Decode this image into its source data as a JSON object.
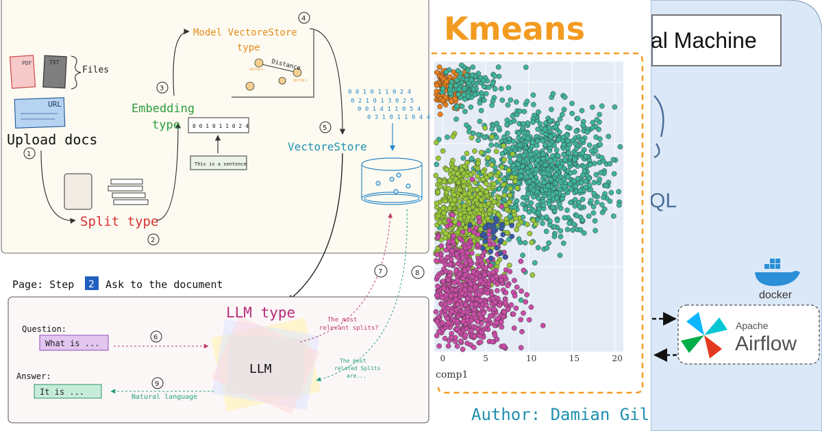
{
  "right_panel": {
    "vm_label": "al Machine",
    "sql_fragment": "QL",
    "docker_label": "docker",
    "airflow_small": "Apache",
    "airflow_big": "Airflow"
  },
  "kmeans": {
    "title": "Kmeans",
    "author": "Author: Damian Gil",
    "xlabel": "comp1"
  },
  "pipeline": {
    "files_label": "Files",
    "pdf_label": "PDF",
    "txt_label": "TXT",
    "url_label": "URL",
    "upload_label": "Upload docs",
    "split_label": "Split type",
    "embedding_label_1": "Embedding",
    "embedding_label_2": "type",
    "vector_code": "0 0 1 0 1 1 0 2 4",
    "sentence": "This is a sentence",
    "model_label_1": "Model VectoreStore",
    "model_label_2": "type",
    "distance_label": "Distance",
    "vector2_label": "VECTOR 2",
    "vector1_label": "VECTOR 1",
    "vectorstore_label": "VectoreStore",
    "codes": [
      "0 0 1 0 1 1 0 2 4",
      "0 2 1 0 1 3 0 2 5",
      "0 0 1 4 1 1 0 5 4",
      "0 3 1 0 1 1 0 4 4"
    ],
    "steps": [
      "1",
      "2",
      "3",
      "4",
      "5",
      "6",
      "7",
      "8",
      "9"
    ]
  },
  "ask": {
    "page_title_pre": "Page: Step",
    "step_number": "2",
    "page_title_post": "Ask to the document",
    "llm_type": "LLM type",
    "llm": "LLM",
    "question_label": "Question:",
    "question_value": "What is ...",
    "answer_label": "Answer:",
    "answer_value": "It is ...",
    "most_relevant_1": "The most",
    "most_relevant_2": "relevant splits?",
    "most_related_1": "The most",
    "most_related_2": "related Splits",
    "most_related_3": "are...",
    "natural_language": "Natural language"
  },
  "chart_data": {
    "type": "scatter",
    "xlabel": "comp1",
    "xticks": [
      0,
      5,
      10,
      15,
      20
    ],
    "xlim": [
      -1,
      21
    ],
    "ylim": [
      0,
      100
    ],
    "clusters": [
      {
        "color": "#e8801f",
        "cx": 0.2,
        "cy": 91,
        "sx": 1.6,
        "sy": 3.5,
        "n": 180
      },
      {
        "color": "#3fb39a",
        "cx": 3.2,
        "cy": 92,
        "sx": 1.6,
        "sy": 3.5,
        "n": 120
      },
      {
        "color": "#3fb39a",
        "cx": 11.5,
        "cy": 62,
        "sx": 4.2,
        "sy": 11,
        "n": 900
      },
      {
        "color": "#99c83a",
        "cx": 2.5,
        "cy": 48,
        "sx": 2.8,
        "sy": 10,
        "n": 620
      },
      {
        "color": "#c94da6",
        "cx": 2.4,
        "cy": 20,
        "sx": 2.8,
        "sy": 11,
        "n": 750
      },
      {
        "color": "#3a5aa8",
        "cx": 5.8,
        "cy": 40,
        "sx": 0.9,
        "sy": 4,
        "n": 30
      }
    ],
    "colors": {
      "orange": "#e8801f",
      "teal": "#3fb39a",
      "green": "#99c83a",
      "magenta": "#c94da6",
      "navy": "#3a5aa8"
    }
  }
}
